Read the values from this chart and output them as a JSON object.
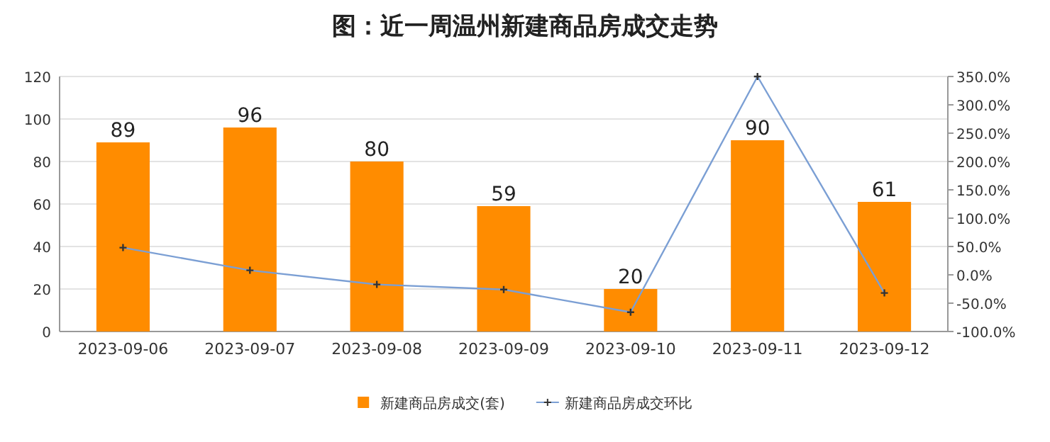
{
  "chart_data": {
    "type": "bar",
    "title": "图：近一周温州新建商品房成交走势",
    "categories": [
      "2023-09-06",
      "2023-09-07",
      "2023-09-08",
      "2023-09-09",
      "2023-09-10",
      "2023-09-11",
      "2023-09-12"
    ],
    "series": [
      {
        "name": "新建商品房成交(套)",
        "color": "#ff8c00",
        "values": [
          89,
          96,
          80,
          59,
          20,
          90,
          61
        ],
        "value_labels": [
          "89",
          "96",
          "80",
          "59",
          "20",
          "90",
          "61"
        ]
      },
      {
        "name": "新建商品房成交环比",
        "type": "line",
        "axis": "y2",
        "color": "#7b9fd4",
        "marker": "cross",
        "values": [
          48,
          8,
          -17,
          -26,
          -66,
          350,
          -32
        ]
      }
    ],
    "ylim": [
      0,
      120
    ],
    "yticks": [
      0,
      20,
      40,
      60,
      80,
      100,
      120
    ],
    "y2lim": [
      -100,
      350
    ],
    "y2ticks": [
      {
        "value": -100,
        "label": "-100.0%"
      },
      {
        "value": -50,
        "label": "-50.0%"
      },
      {
        "value": 0,
        "label": "0.0%"
      },
      {
        "value": 50,
        "label": "50.0%"
      },
      {
        "value": 100,
        "label": "100.0%"
      },
      {
        "value": 150,
        "label": "150.0%"
      },
      {
        "value": 200,
        "label": "200.0%"
      },
      {
        "value": 250,
        "label": "250.0%"
      },
      {
        "value": 300,
        "label": "300.0%"
      },
      {
        "value": 350,
        "label": "350.0%"
      }
    ],
    "grid": "y",
    "legend": "bottom"
  }
}
